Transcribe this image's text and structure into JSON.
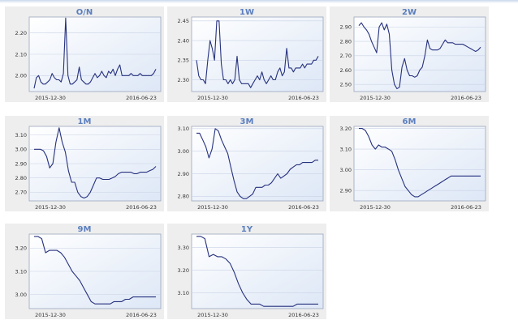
{
  "chart_data": [
    {
      "type": "line",
      "title": "O/N",
      "x_start_label": "2015-12-30",
      "x_end_label": "2016-06-23",
      "ylim": [
        1.925,
        2.275
      ],
      "yticks": [
        "2.00",
        "2.10",
        "2.20"
      ],
      "series": [
        {
          "name": "O/N",
          "values": [
            1.94,
            1.99,
            2.0,
            1.97,
            1.96,
            1.96,
            1.97,
            1.98,
            2.01,
            1.99,
            1.98,
            1.98,
            1.97,
            2.01,
            2.27,
            2.0,
            1.96,
            1.96,
            1.97,
            1.98,
            2.04,
            1.98,
            1.97,
            1.96,
            1.96,
            1.97,
            1.99,
            2.01,
            1.99,
            2.0,
            2.02,
            2.0,
            1.99,
            2.02,
            2.01,
            2.03,
            2.0,
            2.03,
            2.05,
            2.0,
            2.0,
            2.0,
            2.0,
            2.01,
            2.0,
            2.0,
            2.0,
            2.01,
            2.0,
            2.0,
            2.0,
            2.0,
            2.0,
            2.01,
            2.03
          ]
        }
      ]
    },
    {
      "type": "line",
      "title": "1W",
      "x_start_label": "2015-12-30",
      "x_end_label": "2016-06-23",
      "ylim": [
        2.27,
        2.46
      ],
      "yticks": [
        "2.30",
        "2.35",
        "2.40",
        "2.45"
      ],
      "series": [
        {
          "name": "1W",
          "values": [
            2.35,
            2.31,
            2.3,
            2.3,
            2.29,
            2.35,
            2.4,
            2.38,
            2.35,
            2.45,
            2.45,
            2.34,
            2.3,
            2.3,
            2.29,
            2.3,
            2.29,
            2.3,
            2.36,
            2.3,
            2.29,
            2.29,
            2.29,
            2.29,
            2.28,
            2.29,
            2.3,
            2.31,
            2.3,
            2.32,
            2.3,
            2.29,
            2.3,
            2.31,
            2.3,
            2.3,
            2.32,
            2.33,
            2.31,
            2.32,
            2.38,
            2.33,
            2.33,
            2.32,
            2.33,
            2.33,
            2.33,
            2.34,
            2.33,
            2.34,
            2.34,
            2.34,
            2.35,
            2.35,
            2.36
          ]
        }
      ]
    },
    {
      "type": "line",
      "title": "2W",
      "x_start_label": "2015-12-30",
      "x_end_label": "2016-06-23",
      "ylim": [
        2.45,
        2.97
      ],
      "yticks": [
        "2.50",
        "2.60",
        "2.70",
        "2.80",
        "2.90"
      ],
      "series": [
        {
          "name": "2W",
          "values": [
            2.91,
            2.93,
            2.9,
            2.88,
            2.85,
            2.8,
            2.76,
            2.72,
            2.9,
            2.93,
            2.88,
            2.92,
            2.85,
            2.6,
            2.5,
            2.47,
            2.48,
            2.62,
            2.68,
            2.6,
            2.56,
            2.56,
            2.55,
            2.56,
            2.6,
            2.62,
            2.7,
            2.81,
            2.75,
            2.74,
            2.74,
            2.74,
            2.75,
            2.78,
            2.81,
            2.79,
            2.79,
            2.79,
            2.78,
            2.78,
            2.78,
            2.78,
            2.77,
            2.76,
            2.75,
            2.74,
            2.73,
            2.74,
            2.76
          ]
        }
      ]
    },
    {
      "type": "line",
      "title": "1M",
      "x_start_label": "2015-12-30",
      "x_end_label": "2016-06-23",
      "ylim": [
        2.64,
        3.16
      ],
      "yticks": [
        "2.70",
        "2.80",
        "2.90",
        "3.00",
        "3.10"
      ],
      "series": [
        {
          "name": "1M",
          "values": [
            3.0,
            3.0,
            3.0,
            2.99,
            2.95,
            2.87,
            2.9,
            3.05,
            3.15,
            3.05,
            2.98,
            2.85,
            2.77,
            2.77,
            2.7,
            2.67,
            2.66,
            2.67,
            2.7,
            2.75,
            2.8,
            2.8,
            2.79,
            2.79,
            2.79,
            2.8,
            2.81,
            2.83,
            2.84,
            2.84,
            2.84,
            2.84,
            2.83,
            2.83,
            2.84,
            2.84,
            2.84,
            2.85,
            2.86,
            2.88
          ]
        }
      ]
    },
    {
      "type": "line",
      "title": "3M",
      "x_start_label": "2015-12-30",
      "x_end_label": "2016-06-23",
      "ylim": [
        2.78,
        3.11
      ],
      "yticks": [
        "2.80",
        "2.90",
        "3.00",
        "3.10"
      ],
      "series": [
        {
          "name": "3M",
          "values": [
            3.08,
            3.08,
            3.05,
            3.02,
            2.97,
            3.01,
            3.1,
            3.09,
            3.05,
            3.02,
            2.99,
            2.93,
            2.87,
            2.82,
            2.8,
            2.79,
            2.79,
            2.8,
            2.81,
            2.84,
            2.84,
            2.84,
            2.85,
            2.85,
            2.86,
            2.88,
            2.9,
            2.88,
            2.89,
            2.9,
            2.92,
            2.93,
            2.94,
            2.94,
            2.95,
            2.95,
            2.95,
            2.95,
            2.96,
            2.96
          ]
        }
      ]
    },
    {
      "type": "line",
      "title": "6M",
      "x_start_label": "2015-12-30",
      "x_end_label": "2016-06-23",
      "ylim": [
        2.85,
        3.21
      ],
      "yticks": [
        "2.90",
        "3.00",
        "3.10",
        "3.20"
      ],
      "series": [
        {
          "name": "6M",
          "values": [
            3.2,
            3.2,
            3.19,
            3.16,
            3.12,
            3.1,
            3.12,
            3.11,
            3.11,
            3.1,
            3.09,
            3.05,
            3.0,
            2.96,
            2.92,
            2.9,
            2.88,
            2.87,
            2.87,
            2.88,
            2.89,
            2.9,
            2.91,
            2.92,
            2.93,
            2.94,
            2.95,
            2.96,
            2.97,
            2.97,
            2.97,
            2.97,
            2.97,
            2.97,
            2.97,
            2.97,
            2.97,
            2.97
          ]
        }
      ]
    },
    {
      "type": "line",
      "title": "9M",
      "x_start_label": "2015-12-30",
      "x_end_label": "2016-06-23",
      "ylim": [
        2.94,
        3.26
      ],
      "yticks": [
        "3.00",
        "3.10",
        "3.20"
      ],
      "series": [
        {
          "name": "9M",
          "values": [
            3.25,
            3.25,
            3.24,
            3.18,
            3.19,
            3.19,
            3.19,
            3.18,
            3.16,
            3.13,
            3.1,
            3.08,
            3.06,
            3.03,
            3.0,
            2.97,
            2.96,
            2.96,
            2.96,
            2.96,
            2.96,
            2.97,
            2.97,
            2.97,
            2.98,
            2.98,
            2.99,
            2.99,
            2.99,
            2.99,
            2.99,
            2.99,
            2.99
          ]
        }
      ]
    },
    {
      "type": "line",
      "title": "1Y",
      "x_start_label": "2015-12-30",
      "x_end_label": "2016-06-23",
      "ylim": [
        3.03,
        3.36
      ],
      "yticks": [
        "3.10",
        "3.20",
        "3.30"
      ],
      "series": [
        {
          "name": "1Y",
          "values": [
            3.35,
            3.35,
            3.34,
            3.26,
            3.27,
            3.26,
            3.26,
            3.25,
            3.23,
            3.19,
            3.14,
            3.1,
            3.07,
            3.05,
            3.05,
            3.05,
            3.04,
            3.04,
            3.04,
            3.04,
            3.04,
            3.04,
            3.04,
            3.04,
            3.05,
            3.05,
            3.05,
            3.05,
            3.05,
            3.05
          ]
        }
      ]
    }
  ]
}
